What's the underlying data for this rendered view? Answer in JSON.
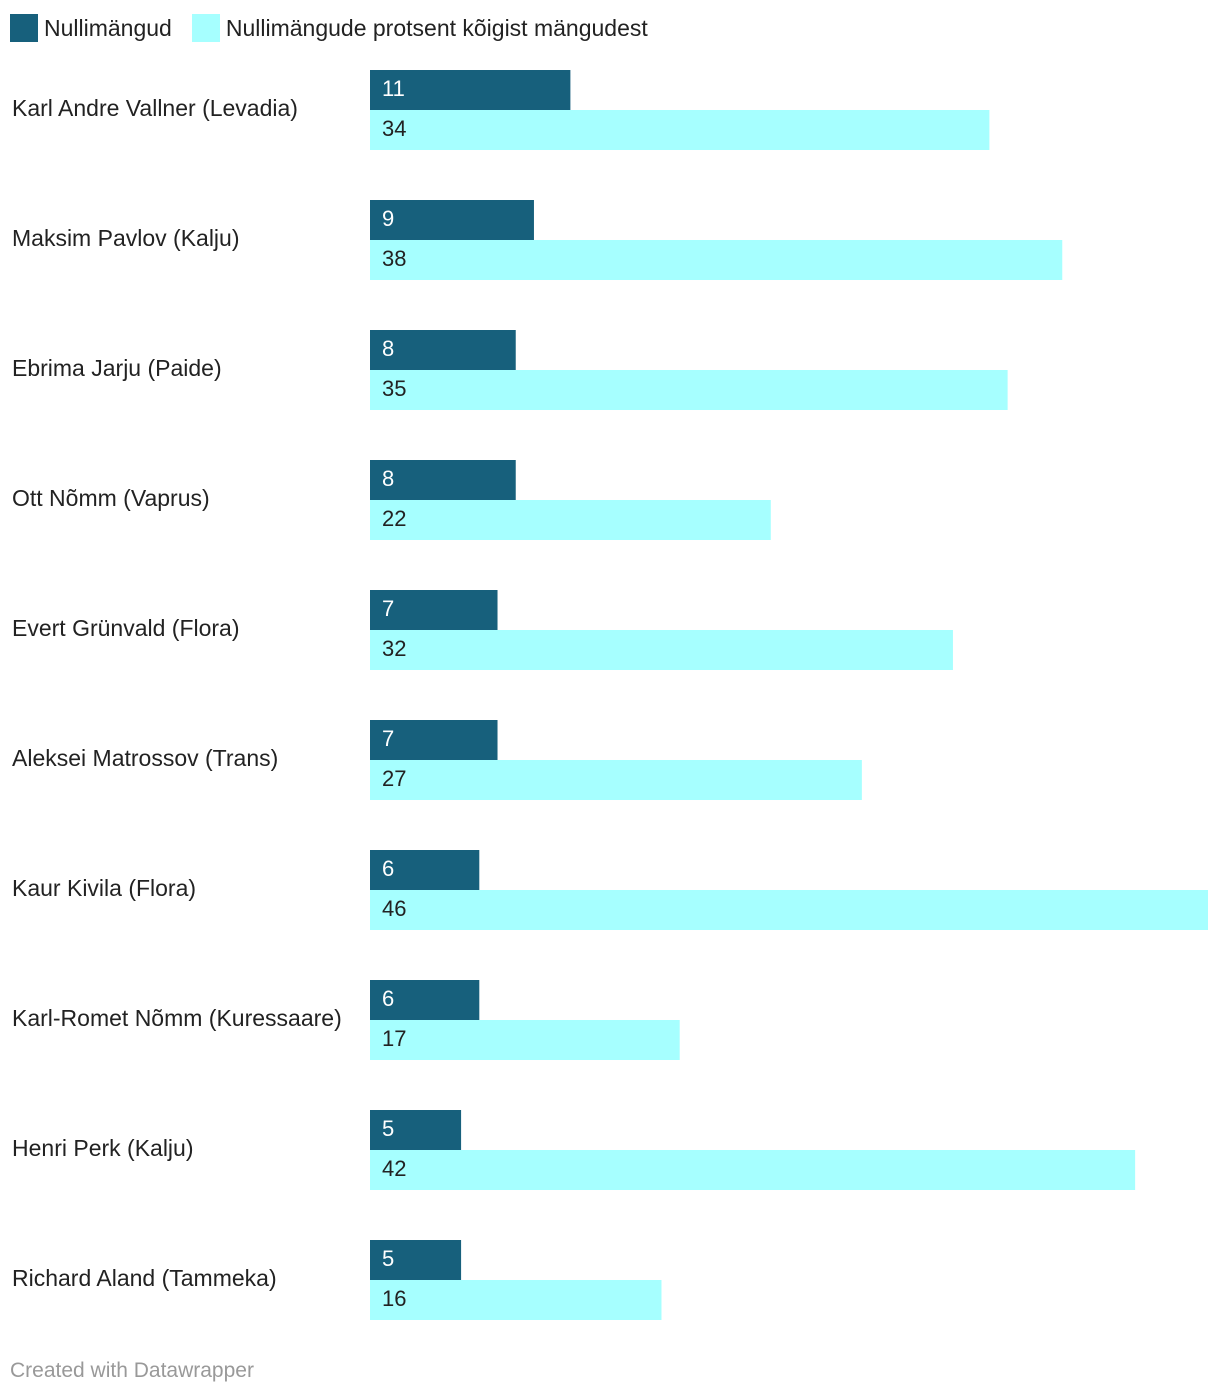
{
  "legend": [
    {
      "label": "Nullimängud",
      "color": "#17607c"
    },
    {
      "label": "Nullimängude protsent kõigist mängudest",
      "color": "#a6ffff"
    }
  ],
  "chart_data": {
    "type": "bar",
    "orientation": "horizontal",
    "categories": [
      "Karl Andre Vallner (Levadia)",
      "Maksim Pavlov (Kalju)",
      "Ebrima Jarju (Paide)",
      "Ott Nõmm (Vaprus)",
      "Evert Grünvald (Flora)",
      "Aleksei Matrossov (Trans)",
      "Kaur Kivila (Flora)",
      "Karl-Romet Nõmm (Kuressaare)",
      "Henri Perk (Kalju)",
      "Richard Aland (Tammeka)"
    ],
    "series": [
      {
        "name": "Nullimängud",
        "color": "#17607c",
        "values": [
          11,
          9,
          8,
          8,
          7,
          7,
          6,
          6,
          5,
          5
        ]
      },
      {
        "name": "Nullimängude protsent kõigist mängudest",
        "color": "#a6ffff",
        "values": [
          34,
          38,
          35,
          22,
          32,
          27,
          46,
          17,
          42,
          16
        ]
      }
    ],
    "xlim": [
      0,
      46
    ],
    "data_labels": true,
    "grid": false,
    "legend_position": "top-left"
  },
  "footer": {
    "credit": "Created with Datawrapper"
  }
}
